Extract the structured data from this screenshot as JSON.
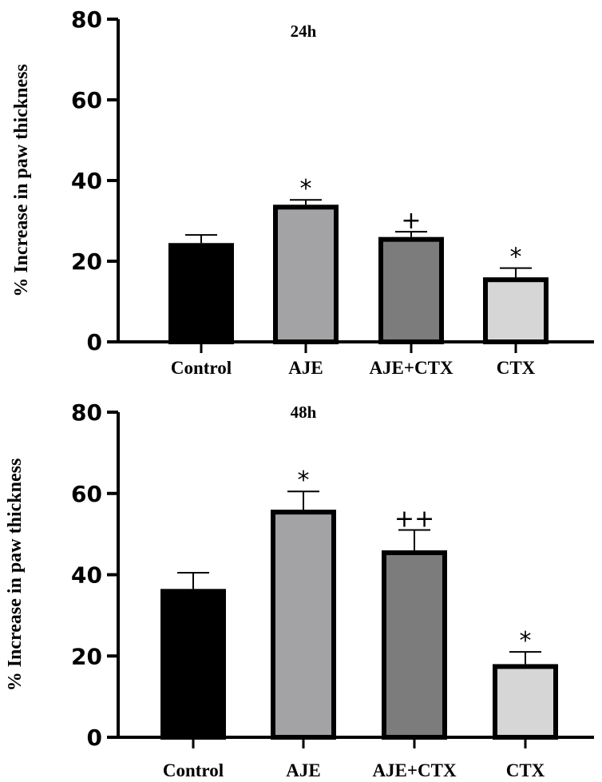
{
  "chart_data": [
    {
      "type": "bar",
      "title": "24h",
      "ylabel": "% Increase in paw thickness",
      "xlabel": "",
      "ylim": [
        0,
        80
      ],
      "yticks": [
        0,
        20,
        40,
        60,
        80
      ],
      "categories": [
        "Control",
        "AJE",
        "AJE+CTX",
        "CTX"
      ],
      "values": [
        24.5,
        34,
        26,
        16
      ],
      "errors": [
        2,
        1.2,
        1.3,
        2.3
      ],
      "annotations": [
        "",
        "*",
        "+",
        "*"
      ],
      "colors": [
        "#000000",
        "#a3a3a5",
        "#7c7c7c",
        "#d6d6d6"
      ]
    },
    {
      "type": "bar",
      "title": "48h",
      "ylabel": "% Increase in paw thickness",
      "xlabel": "",
      "ylim": [
        0,
        80
      ],
      "yticks": [
        0,
        20,
        40,
        60,
        80
      ],
      "categories": [
        "Control",
        "AJE",
        "AJE+CTX",
        "CTX"
      ],
      "values": [
        36.5,
        56,
        46,
        18
      ],
      "errors": [
        4,
        4.5,
        5,
        3
      ],
      "annotations": [
        "",
        "*",
        "++",
        "*"
      ],
      "colors": [
        "#000000",
        "#a3a3a5",
        "#7c7c7c",
        "#d6d6d6"
      ]
    }
  ]
}
